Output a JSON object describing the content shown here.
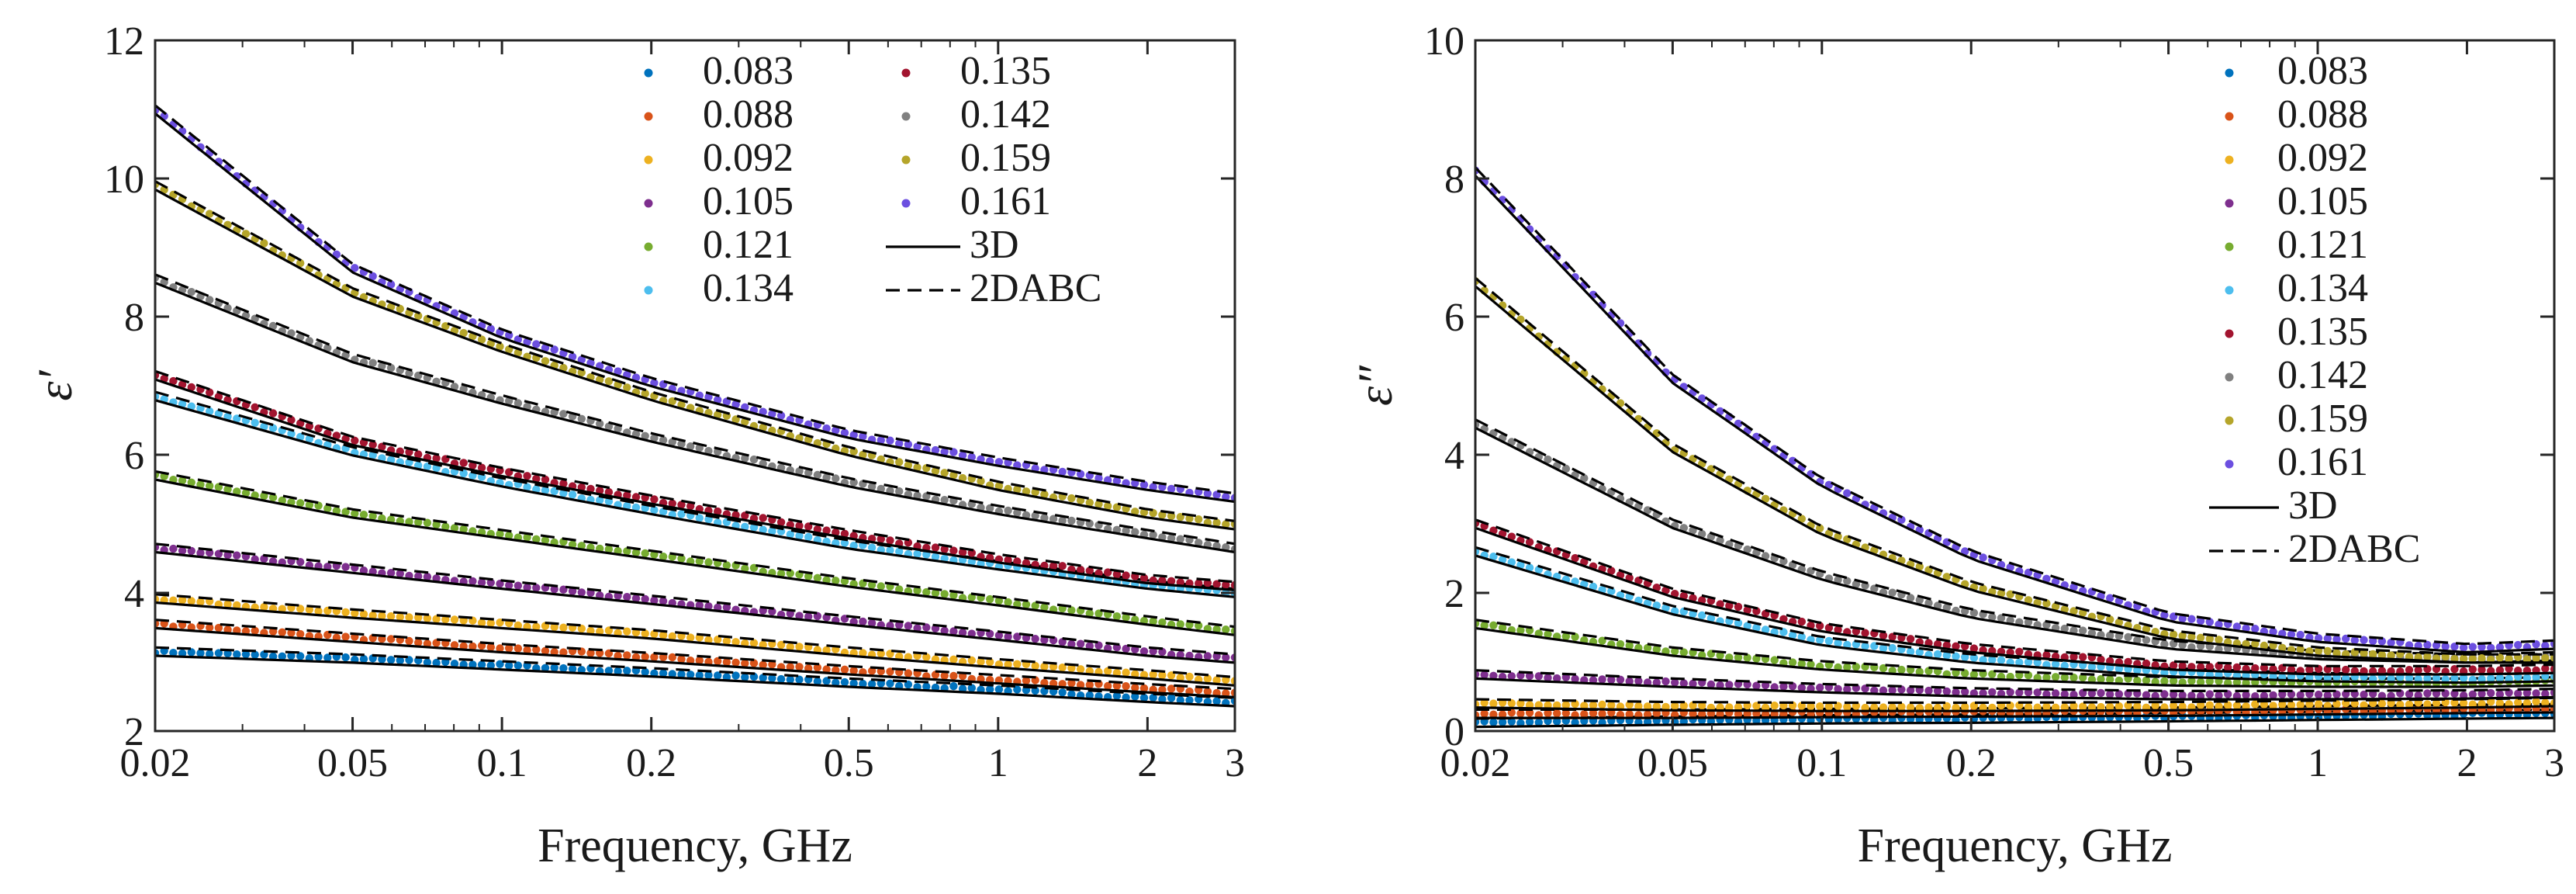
{
  "chart_data": [
    {
      "type": "scatter",
      "panel": "left",
      "ylabel": "ε′",
      "xlabel": "Frequency, GHz",
      "xscale": "log",
      "xlim": [
        0.02,
        3
      ],
      "ylim": [
        2,
        12
      ],
      "xticks": [
        0.02,
        0.05,
        0.1,
        0.2,
        0.5,
        1,
        2,
        3
      ],
      "xtick_labels": [
        "0.02",
        "0.05",
        "0.1",
        "0.2",
        "0.5",
        "1",
        "2",
        "3"
      ],
      "yticks": [
        2,
        4,
        6,
        8,
        10,
        12
      ],
      "ytick_labels": [
        "2",
        "4",
        "6",
        "8",
        "10",
        "12"
      ],
      "legend_position": "top-right",
      "legend_columns": 2,
      "x": [
        0.02,
        0.05,
        0.1,
        0.2,
        0.5,
        1,
        2,
        3
      ],
      "series": [
        {
          "name": "0.083",
          "color": "#0072BD",
          "values": [
            3.15,
            3.05,
            2.95,
            2.85,
            2.7,
            2.6,
            2.48,
            2.42
          ]
        },
        {
          "name": "0.088",
          "color": "#D95319",
          "values": [
            3.55,
            3.35,
            3.2,
            3.07,
            2.88,
            2.75,
            2.62,
            2.55
          ]
        },
        {
          "name": "0.092",
          "color": "#EDB120",
          "values": [
            3.92,
            3.7,
            3.55,
            3.4,
            3.15,
            2.98,
            2.82,
            2.72
          ]
        },
        {
          "name": "0.105",
          "color": "#7E2F8E",
          "values": [
            4.65,
            4.35,
            4.12,
            3.9,
            3.6,
            3.38,
            3.15,
            3.05
          ]
        },
        {
          "name": "0.121",
          "color": "#77AC30",
          "values": [
            5.7,
            5.15,
            4.85,
            4.55,
            4.15,
            3.88,
            3.6,
            3.45
          ]
        },
        {
          "name": "0.134",
          "color": "#4DBEEE",
          "values": [
            6.85,
            6.05,
            5.6,
            5.2,
            4.7,
            4.4,
            4.12,
            4.0
          ]
        },
        {
          "name": "0.135",
          "color": "#A2142F",
          "values": [
            7.15,
            6.2,
            5.75,
            5.35,
            4.85,
            4.5,
            4.2,
            4.1
          ]
        },
        {
          "name": "0.142",
          "color": "#808080",
          "values": [
            8.55,
            7.4,
            6.8,
            6.25,
            5.6,
            5.2,
            4.85,
            4.65
          ]
        },
        {
          "name": "0.159",
          "color": "#B5A52A",
          "values": [
            9.9,
            8.35,
            7.55,
            6.85,
            6.05,
            5.55,
            5.15,
            4.98
          ]
        },
        {
          "name": "0.161",
          "color": "#6C4FE0",
          "values": [
            11.0,
            8.7,
            7.75,
            7.05,
            6.3,
            5.9,
            5.55,
            5.38
          ]
        }
      ],
      "legend_entries": [
        "0.083",
        "0.088",
        "0.092",
        "0.105",
        "0.121",
        "0.134",
        "0.135",
        "0.142",
        "0.159",
        "0.161",
        "3D",
        "2DABC"
      ]
    },
    {
      "type": "scatter",
      "panel": "right",
      "ylabel": "ε″",
      "xlabel": "Frequency, GHz",
      "xscale": "log",
      "xlim": [
        0.02,
        3
      ],
      "ylim": [
        0,
        10
      ],
      "xticks": [
        0.02,
        0.05,
        0.1,
        0.2,
        0.5,
        1,
        2,
        3
      ],
      "xtick_labels": [
        "0.02",
        "0.05",
        "0.1",
        "0.2",
        "0.5",
        "1",
        "2",
        "3"
      ],
      "yticks": [
        0,
        2,
        4,
        6,
        8,
        10
      ],
      "ytick_labels": [
        "0",
        "2",
        "4",
        "6",
        "8",
        "10"
      ],
      "legend_position": "top-right",
      "legend_columns": 1,
      "x": [
        0.02,
        0.05,
        0.1,
        0.2,
        0.5,
        1,
        2,
        3
      ],
      "series": [
        {
          "name": "0.083",
          "color": "#0072BD",
          "values": [
            0.12,
            0.15,
            0.17,
            0.18,
            0.2,
            0.22,
            0.24,
            0.25
          ]
        },
        {
          "name": "0.088",
          "color": "#D95319",
          "values": [
            0.25,
            0.25,
            0.26,
            0.27,
            0.28,
            0.3,
            0.32,
            0.33
          ]
        },
        {
          "name": "0.092",
          "color": "#EDB120",
          "values": [
            0.4,
            0.36,
            0.35,
            0.35,
            0.36,
            0.38,
            0.4,
            0.42
          ]
        },
        {
          "name": "0.105",
          "color": "#7E2F8E",
          "values": [
            0.82,
            0.7,
            0.62,
            0.56,
            0.52,
            0.52,
            0.53,
            0.55
          ]
        },
        {
          "name": "0.121",
          "color": "#77AC30",
          "values": [
            1.55,
            1.15,
            0.95,
            0.82,
            0.72,
            0.7,
            0.7,
            0.72
          ]
        },
        {
          "name": "0.134",
          "color": "#4DBEEE",
          "values": [
            2.6,
            1.75,
            1.3,
            1.05,
            0.85,
            0.78,
            0.76,
            0.78
          ]
        },
        {
          "name": "0.135",
          "color": "#A2142F",
          "values": [
            3.0,
            2.0,
            1.5,
            1.2,
            0.95,
            0.88,
            0.88,
            0.9
          ]
        },
        {
          "name": "0.142",
          "color": "#808080",
          "values": [
            4.45,
            3.0,
            2.25,
            1.7,
            1.25,
            1.1,
            1.05,
            1.08
          ]
        },
        {
          "name": "0.159",
          "color": "#B5A52A",
          "values": [
            6.5,
            4.1,
            2.9,
            2.1,
            1.4,
            1.15,
            1.05,
            1.05
          ]
        },
        {
          "name": "0.161",
          "color": "#6C4FE0",
          "values": [
            8.1,
            5.1,
            3.6,
            2.55,
            1.65,
            1.35,
            1.2,
            1.25
          ]
        }
      ],
      "legend_entries": [
        "0.083",
        "0.088",
        "0.092",
        "0.105",
        "0.121",
        "0.134",
        "0.135",
        "0.142",
        "0.159",
        "0.161",
        "3D",
        "2DABC"
      ]
    }
  ],
  "legend_fit_labels": {
    "solid": "3D",
    "dashed": "2DABC"
  }
}
